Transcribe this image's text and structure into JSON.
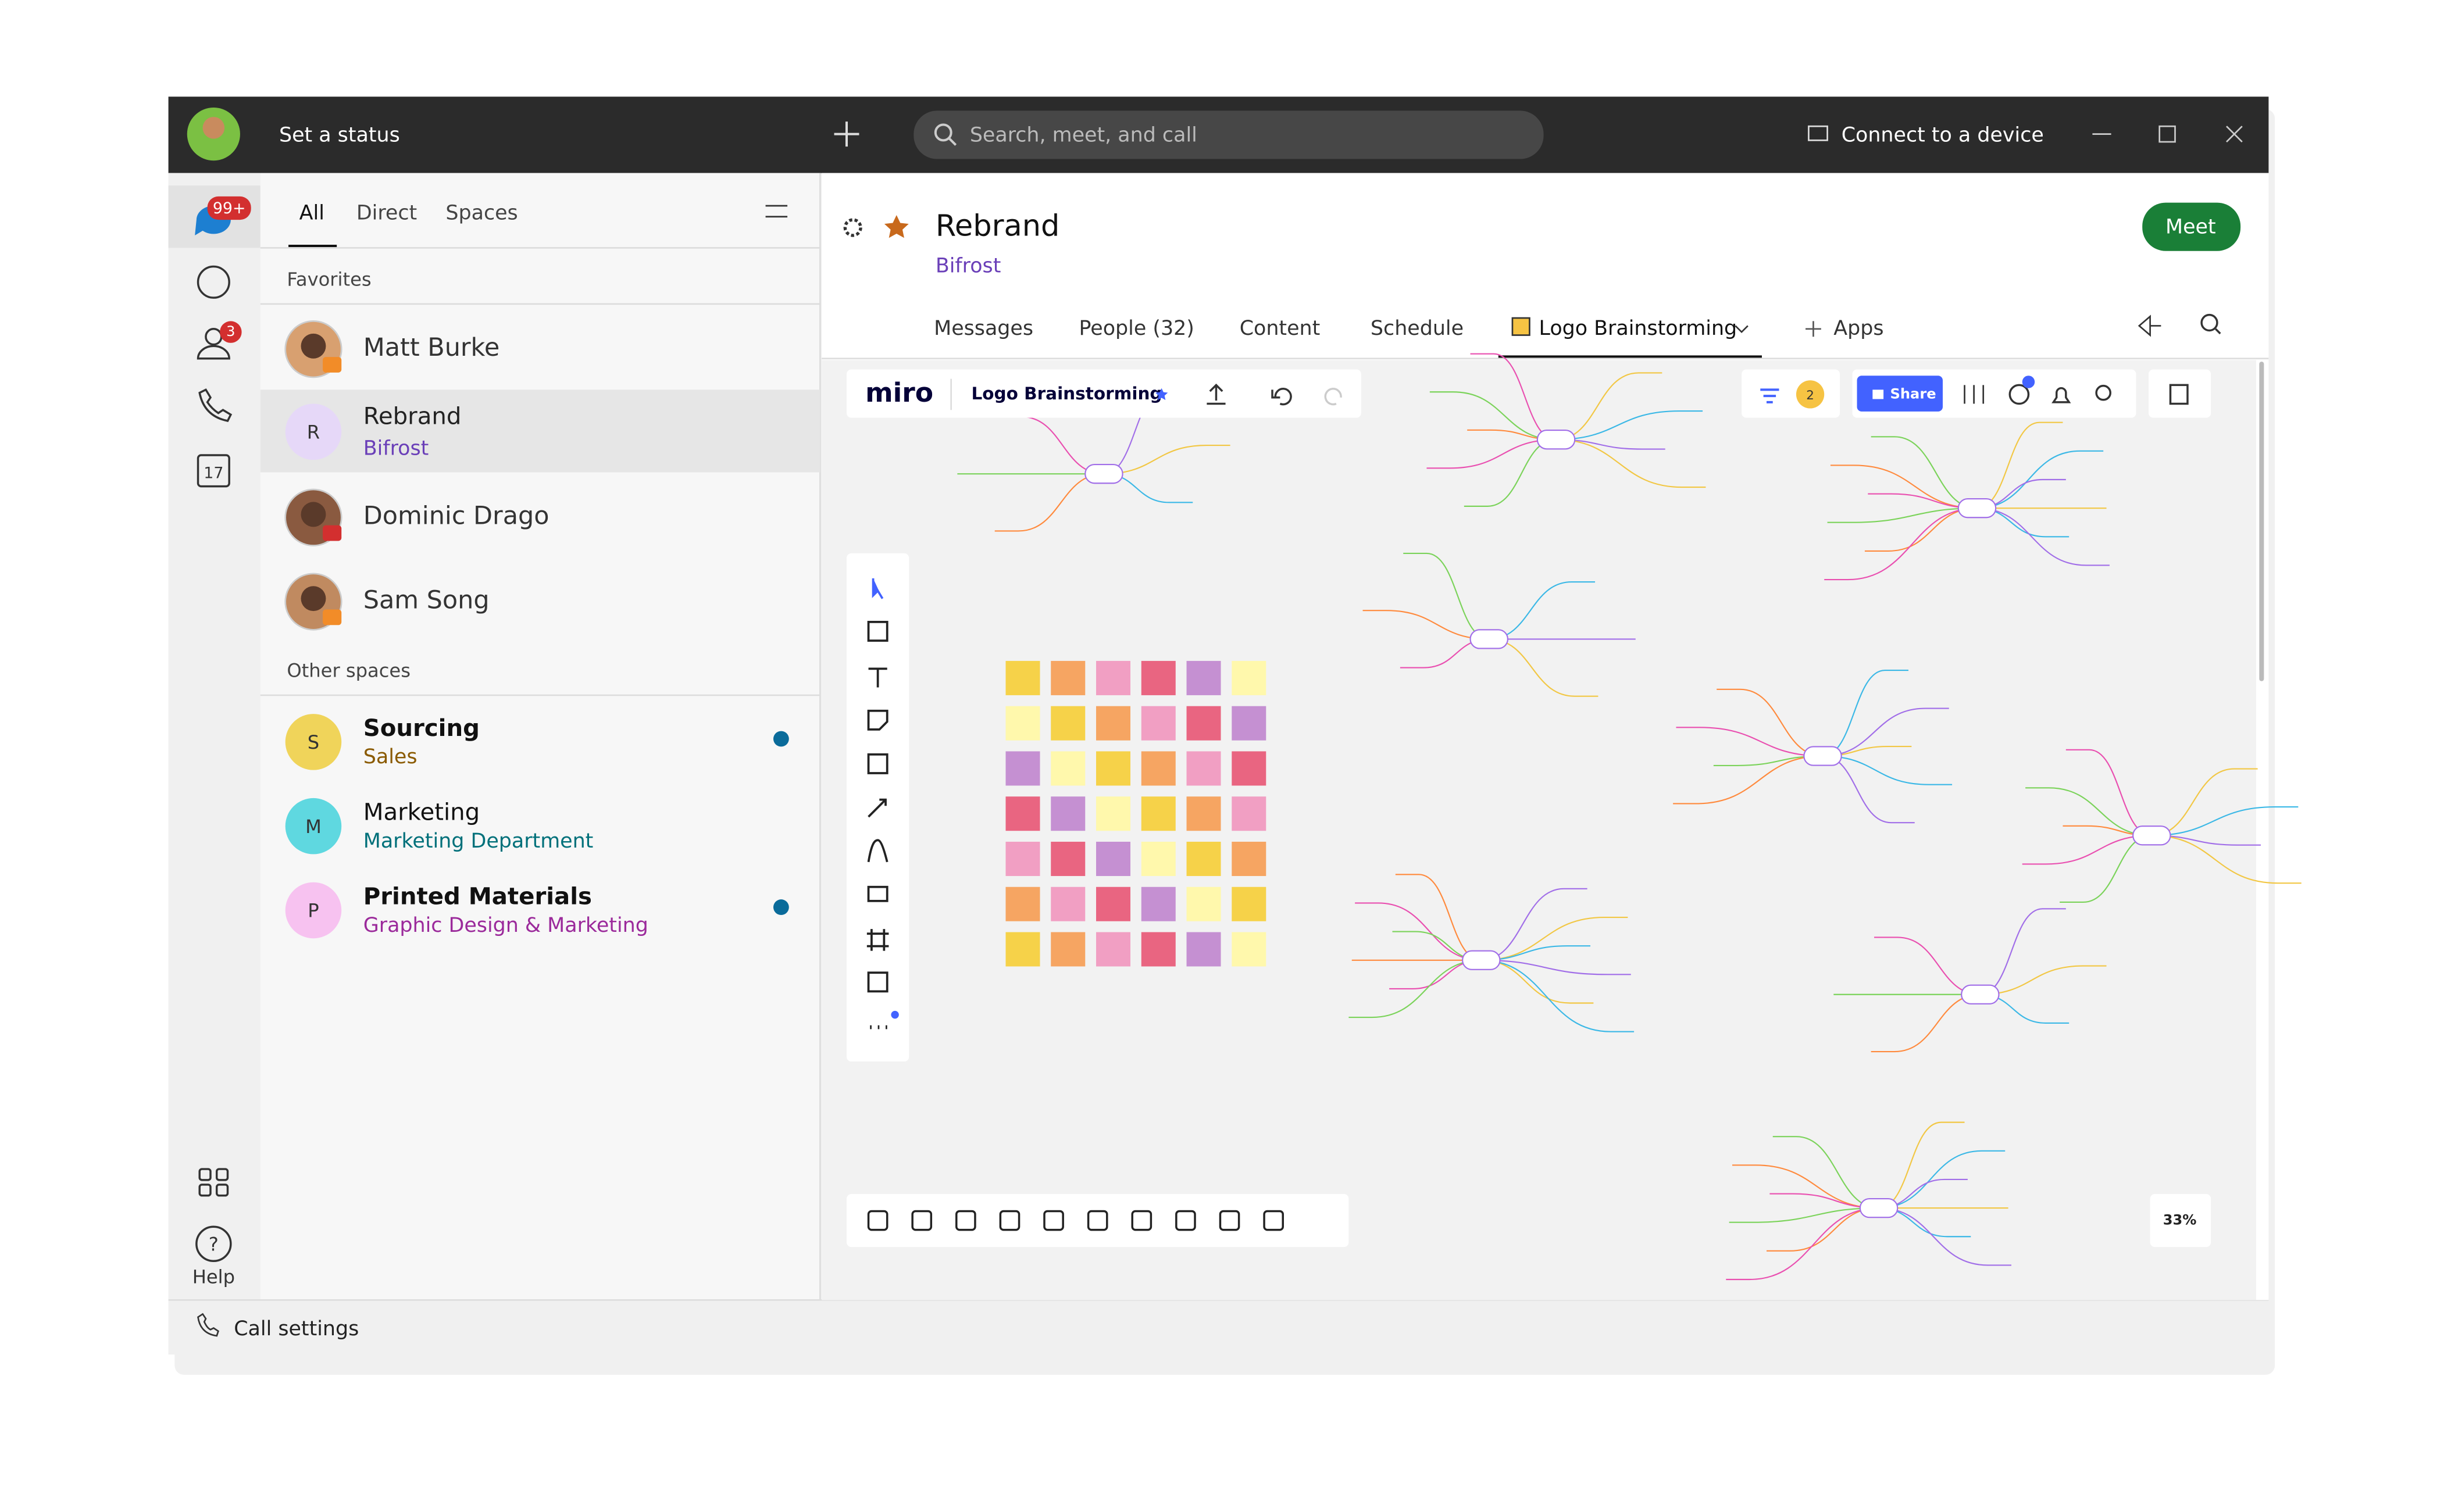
{
  "titlebar": {
    "status": "Set a status",
    "search": "Search, meet, and call",
    "connect": "Connect to a device"
  },
  "rail": {
    "messages_badge": "99+",
    "teams_badge": "3",
    "calendar_day": "17",
    "help": "Help"
  },
  "list": {
    "tabs": [
      "All",
      "Direct",
      "Spaces"
    ],
    "favorites_header": "Favorites",
    "favorites": [
      {
        "name": "Matt Burke"
      },
      {
        "name": "Rebrand",
        "subtitle": "Bifrost",
        "initial": "R"
      },
      {
        "name": "Dominic Drago"
      },
      {
        "name": "Sam Song"
      }
    ],
    "other_header": "Other spaces",
    "spaces": [
      {
        "initial": "S",
        "name": "Sourcing",
        "subtitle": "Sales"
      },
      {
        "initial": "M",
        "name": "Marketing",
        "subtitle": "Marketing Department"
      },
      {
        "initial": "P",
        "name": "Printed Materials",
        "subtitle": "Graphic Design & Marketing"
      }
    ]
  },
  "footer": {
    "call_settings": "Call settings"
  },
  "space": {
    "title": "Rebrand",
    "subtitle": "Bifrost",
    "meet": "Meet",
    "tabs": [
      "Messages",
      "People (32)",
      "Content",
      "Schedule",
      "Logo Brainstorming"
    ],
    "apps": "Apps"
  },
  "miro": {
    "logo": "miro",
    "board": "Logo Brainstorming",
    "share": "Share",
    "zoom": "33%",
    "users": "2"
  }
}
